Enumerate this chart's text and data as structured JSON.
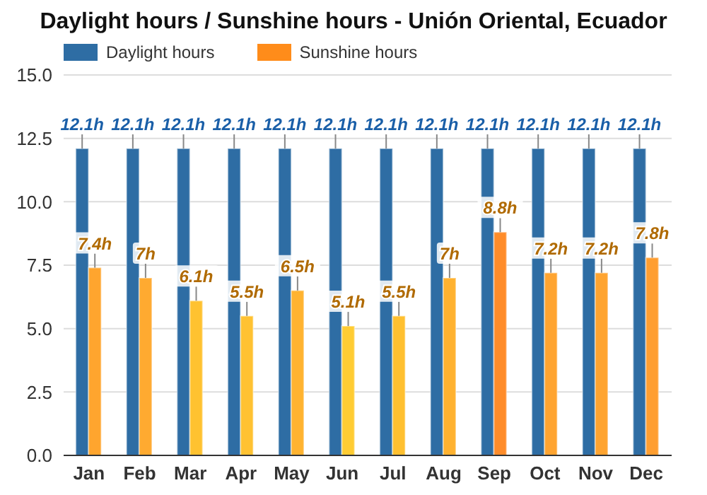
{
  "chart_data": {
    "type": "bar",
    "title": "Daylight hours / Sunshine hours - Unión Oriental, Ecuador",
    "categories": [
      "Jan",
      "Feb",
      "Mar",
      "Apr",
      "May",
      "Jun",
      "Jul",
      "Aug",
      "Sep",
      "Oct",
      "Nov",
      "Dec"
    ],
    "series": [
      {
        "name": "Daylight hours",
        "color": "#2e6da4",
        "values": [
          12.1,
          12.1,
          12.1,
          12.1,
          12.1,
          12.1,
          12.1,
          12.1,
          12.1,
          12.1,
          12.1,
          12.1
        ],
        "value_labels": [
          "12.1h",
          "12.1h",
          "12.1h",
          "12.1h",
          "12.1h",
          "12.1h",
          "12.1h",
          "12.1h",
          "12.1h",
          "12.1h",
          "12.1h",
          "12.1h"
        ]
      },
      {
        "name": "Sunshine hours",
        "color": "#ff8c1a",
        "colors": [
          "#ffa52e",
          "#ffaa30",
          "#ffc230",
          "#ffc232",
          "#ffb330",
          "#ffcc33",
          "#ffc030",
          "#ffb230",
          "#ff8c2a",
          "#ffa430",
          "#ffa430",
          "#ff9e30"
        ],
        "values": [
          7.4,
          7,
          6.1,
          5.5,
          6.5,
          5.1,
          5.5,
          7,
          8.8,
          7.2,
          7.2,
          7.8
        ],
        "value_labels": [
          "7.4h",
          "7h",
          "6.1h",
          "5.5h",
          "6.5h",
          "5.1h",
          "5.5h",
          "7h",
          "8.8h",
          "7.2h",
          "7.2h",
          "7.8h"
        ]
      }
    ],
    "ylim": [
      0,
      15
    ],
    "yticks": [
      {
        "value": 0,
        "label": "0.0"
      },
      2.5,
      {
        "value": 5,
        "label": "5.0"
      },
      7.5,
      {
        "value": 10,
        "label": "10.0"
      },
      12.5,
      {
        "value": 15,
        "label": "15.0"
      }
    ],
    "grid": "y",
    "legend": "top left"
  }
}
